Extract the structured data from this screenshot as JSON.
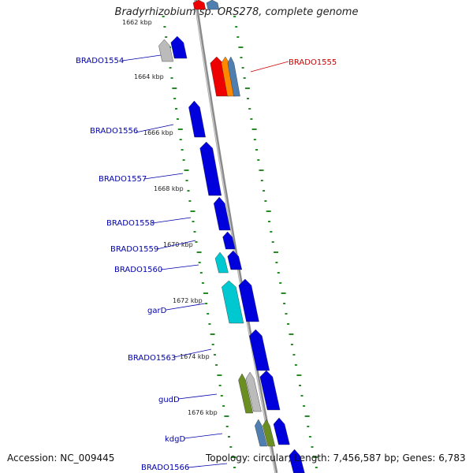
{
  "title": "Bradyrhizobium sp. ORS278, complete genome",
  "footer": {
    "accession": "Accession: NC_009445",
    "topology": "Topology: circular; Length: 7,456,587 bp; Genes: 6,783"
  },
  "colors": {
    "backbone": "#8a8a8a",
    "tick_dots": "#2a8a2a",
    "label_blue": "#0000aa",
    "label_red": "#cc0000",
    "gene_blue": "#0000dd",
    "gene_red": "#ee0000",
    "gene_orange": "#ff8800",
    "gene_steel": "#4f7fb0",
    "gene_cyan": "#00c8d0",
    "gene_olive": "#6b8e23",
    "gene_gray": "#bbbbbb"
  },
  "kbp_labels": [
    "1662 kbp",
    "1664 kbp",
    "1666 kbp",
    "1668 kbp",
    "1670 kbp",
    "1672 kbp",
    "1674 kbp",
    "1676 kbp"
  ],
  "gene_labels": [
    {
      "name": "BRADO1554",
      "color": "blue"
    },
    {
      "name": "BRADO1555",
      "color": "red"
    },
    {
      "name": "BRADO1556",
      "color": "blue"
    },
    {
      "name": "BRADO1557",
      "color": "blue"
    },
    {
      "name": "BRADO1558",
      "color": "blue"
    },
    {
      "name": "BRADO1559",
      "color": "blue"
    },
    {
      "name": "BRADO1560",
      "color": "blue"
    },
    {
      "name": "garD",
      "color": "blue"
    },
    {
      "name": "BRADO1563",
      "color": "blue"
    },
    {
      "name": "gudD",
      "color": "blue"
    },
    {
      "name": "kdgD",
      "color": "blue"
    },
    {
      "name": "BRADO1566",
      "color": "blue"
    }
  ]
}
